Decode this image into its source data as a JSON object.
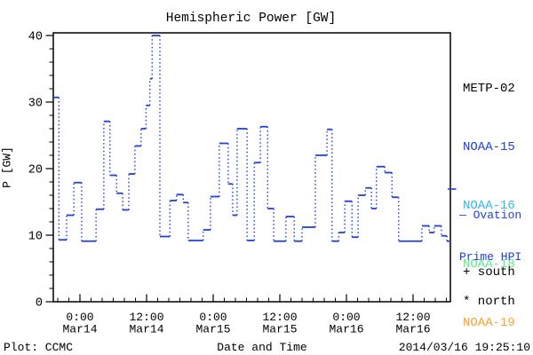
{
  "title": "Hemispheric Power [GW]",
  "legend": {
    "items": [
      {
        "label": "METP-02",
        "color": "#000000"
      },
      {
        "label": "NOAA-15",
        "color": "#2040d8"
      },
      {
        "label": "NOAA-16",
        "color": "#30b8e8"
      },
      {
        "label": "NOAA-18",
        "color": "#60e890"
      },
      {
        "label": "NOAA-19",
        "color": "#ffa030"
      }
    ]
  },
  "annotations": {
    "ovation_line1": "— Ovation",
    "ovation_line2": "Prime HPI",
    "south_marker": "+ south",
    "north_marker": "* north"
  },
  "footer": {
    "credit": "Plot: CCMC",
    "generated": "2014/03/16 19:25:10"
  },
  "chart_data": {
    "type": "line",
    "subtype": "step-post with dotted risers",
    "title": "Hemispheric Power [GW]",
    "xlabel": "Date and Time",
    "ylabel": "P [GW]",
    "ylim": [
      0,
      40
    ],
    "y_major_ticks": [
      0,
      10,
      20,
      30,
      40
    ],
    "y_minor_step": 2,
    "x_units": "hours since 2014-03-14 00:00",
    "xlim_hours": [
      -4.8,
      66.72
    ],
    "x_minor_step_hours": 2,
    "xticks": [
      {
        "hour": 0,
        "time": "0:00",
        "date": "Mar14"
      },
      {
        "hour": 12,
        "time": "12:00",
        "date": "Mar14"
      },
      {
        "hour": 24,
        "time": "0:00",
        "date": "Mar15"
      },
      {
        "hour": 36,
        "time": "12:00",
        "date": "Mar15"
      },
      {
        "hour": 48,
        "time": "0:00",
        "date": "Mar16"
      },
      {
        "hour": 60,
        "time": "12:00",
        "date": "Mar16"
      }
    ],
    "series": [
      {
        "name": "Ovation Prime HPI",
        "color": "#2040d8",
        "steps_t_hour_value_gw": [
          [
            -4.8,
            30.7
          ],
          [
            -3.8,
            9.3
          ],
          [
            -2.4,
            13.0
          ],
          [
            -1.1,
            17.9
          ],
          [
            0.3,
            9.1
          ],
          [
            2.9,
            13.9
          ],
          [
            4.3,
            27.1
          ],
          [
            5.4,
            19.0
          ],
          [
            6.6,
            16.3
          ],
          [
            7.7,
            13.8
          ],
          [
            8.8,
            19.2
          ],
          [
            9.9,
            23.4
          ],
          [
            11.0,
            26.0
          ],
          [
            11.9,
            29.5
          ],
          [
            12.6,
            33.5
          ],
          [
            13.0,
            40.0
          ],
          [
            14.4,
            9.8
          ],
          [
            16.2,
            15.2
          ],
          [
            17.4,
            16.1
          ],
          [
            18.6,
            14.9
          ],
          [
            19.5,
            9.2
          ],
          [
            22.2,
            10.8
          ],
          [
            23.5,
            15.8
          ],
          [
            25.1,
            23.8
          ],
          [
            26.7,
            17.7
          ],
          [
            27.5,
            13.0
          ],
          [
            28.3,
            26.0
          ],
          [
            30.1,
            9.2
          ],
          [
            31.4,
            20.9
          ],
          [
            32.5,
            26.3
          ],
          [
            33.8,
            14.0
          ],
          [
            34.9,
            9.1
          ],
          [
            37.1,
            12.8
          ],
          [
            38.6,
            9.1
          ],
          [
            40.0,
            11.2
          ],
          [
            42.4,
            22.0
          ],
          [
            44.5,
            25.9
          ],
          [
            45.4,
            9.1
          ],
          [
            46.6,
            10.4
          ],
          [
            47.7,
            15.1
          ],
          [
            49.0,
            9.7
          ],
          [
            50.1,
            16.0
          ],
          [
            51.4,
            17.1
          ],
          [
            52.5,
            14.0
          ],
          [
            53.4,
            20.3
          ],
          [
            54.9,
            19.4
          ],
          [
            56.2,
            15.7
          ],
          [
            57.4,
            9.1
          ],
          [
            61.6,
            11.4
          ],
          [
            62.9,
            10.4
          ],
          [
            63.8,
            11.4
          ],
          [
            65.1,
            9.9
          ],
          [
            66.1,
            9.1
          ]
        ]
      }
    ]
  }
}
